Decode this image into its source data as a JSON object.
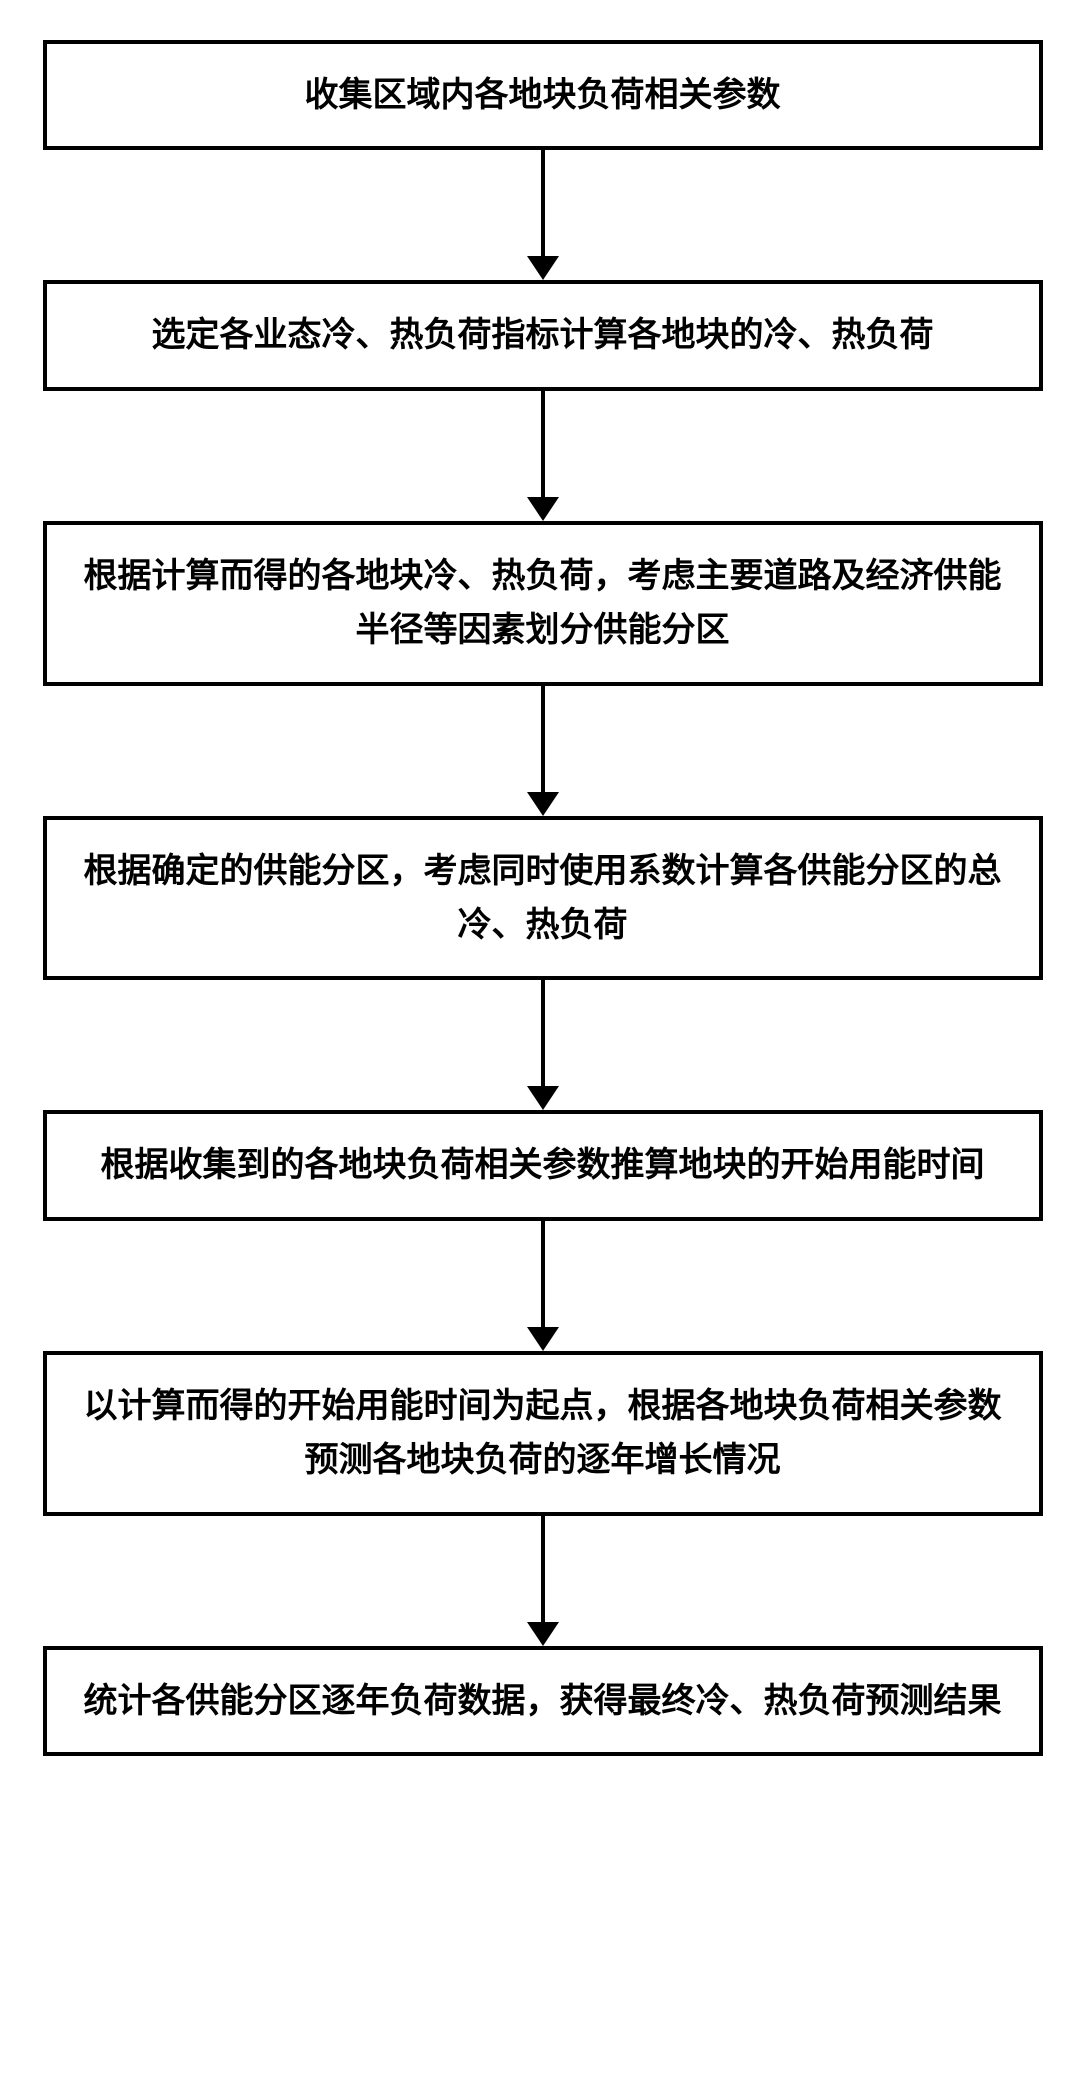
{
  "flowchart": {
    "type": "flowchart",
    "direction": "vertical",
    "box_border_color": "#000000",
    "box_border_width": 4,
    "box_background": "#ffffff",
    "text_color": "#000000",
    "font_size": 34,
    "font_weight": "bold",
    "arrow_color": "#000000",
    "arrow_line_width": 4,
    "arrow_gap_height": 130,
    "steps": [
      {
        "label": "收集区域内各地块负荷相关参数"
      },
      {
        "label": "选定各业态冷、热负荷指标计算各地块的冷、热负荷"
      },
      {
        "label": "根据计算而得的各地块冷、热负荷，考虑主要道路及经济供能半径等因素划分供能分区"
      },
      {
        "label": "根据确定的供能分区，考虑同时使用系数计算各供能分区的总冷、热负荷"
      },
      {
        "label": "根据收集到的各地块负荷相关参数推算地块的开始用能时间"
      },
      {
        "label": "以计算而得的开始用能时间为起点，根据各地块负荷相关参数预测各地块负荷的逐年增长情况"
      },
      {
        "label": "统计各供能分区逐年负荷数据，获得最终冷、热负荷预测结果"
      }
    ]
  }
}
